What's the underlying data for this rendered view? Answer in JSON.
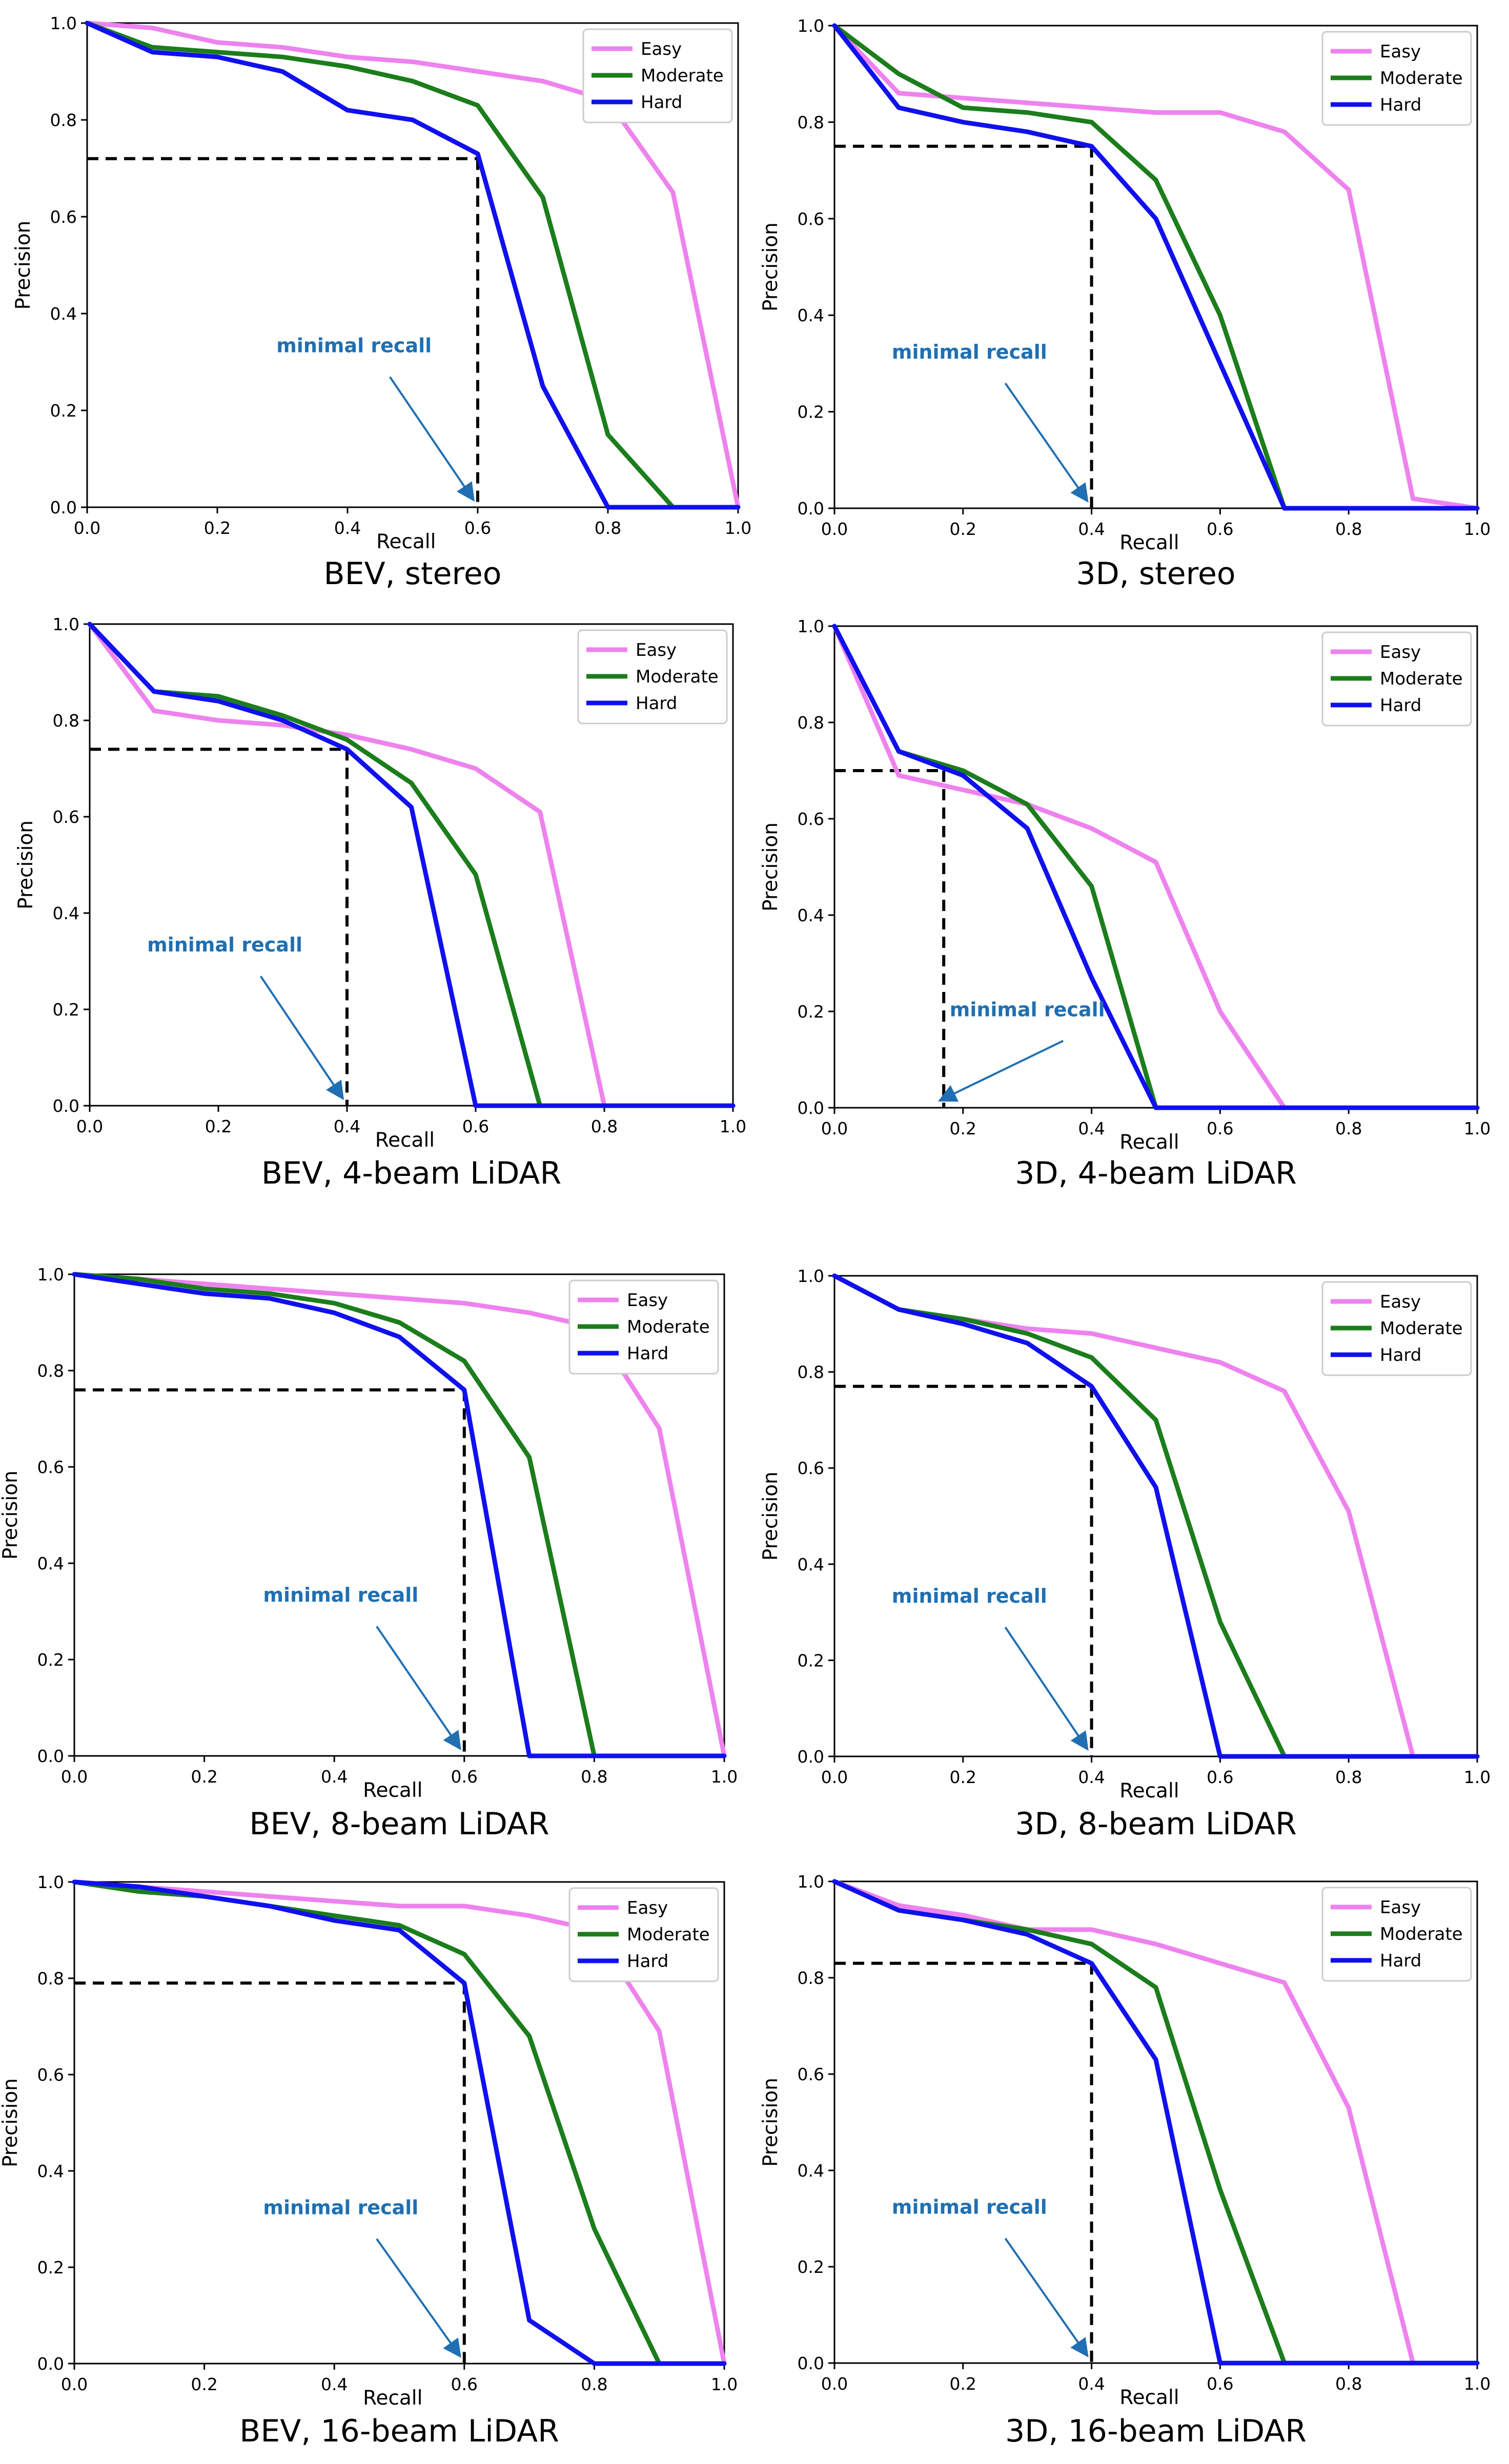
{
  "colors": {
    "easy": "#ee82ee",
    "moderate": "#1b7d1b",
    "hard": "#1010ee",
    "annotation": "#1f6fb2",
    "dashed": "#000000"
  },
  "chart_data": [
    {
      "type": "line",
      "caption": "BEV, stereo",
      "xlabel": "Recall",
      "ylabel": "Precision",
      "xlim": [
        0,
        1
      ],
      "ylim": [
        0,
        1
      ],
      "xticks": [
        "0.0",
        "0.2",
        "0.4",
        "0.6",
        "0.8",
        "1.0"
      ],
      "yticks": [
        "0.0",
        "0.2",
        "0.4",
        "0.6",
        "0.8",
        "1.0"
      ],
      "legend": {
        "position": "top-right",
        "labels": [
          "Easy",
          "Moderate",
          "Hard"
        ]
      },
      "annotation": {
        "text": "minimal recall",
        "recall": 0.6,
        "precision": 0.72,
        "label_at": [
          0.41,
          0.32
        ]
      },
      "series": [
        {
          "name": "Easy",
          "x": [
            0,
            0.1,
            0.2,
            0.3,
            0.4,
            0.5,
            0.6,
            0.7,
            0.8,
            0.9,
            1.0
          ],
          "y": [
            1.0,
            0.99,
            0.96,
            0.95,
            0.93,
            0.92,
            0.9,
            0.88,
            0.84,
            0.65,
            0.0
          ]
        },
        {
          "name": "Moderate",
          "x": [
            0,
            0.1,
            0.2,
            0.3,
            0.4,
            0.5,
            0.6,
            0.7,
            0.8,
            0.9,
            1.0
          ],
          "y": [
            1.0,
            0.95,
            0.94,
            0.93,
            0.91,
            0.88,
            0.83,
            0.64,
            0.15,
            0.0,
            0.0
          ]
        },
        {
          "name": "Hard",
          "x": [
            0,
            0.1,
            0.2,
            0.3,
            0.4,
            0.5,
            0.6,
            0.7,
            0.8,
            0.9,
            1.0
          ],
          "y": [
            1.0,
            0.94,
            0.93,
            0.9,
            0.82,
            0.8,
            0.73,
            0.25,
            0.0,
            0.0,
            0.0
          ]
        }
      ]
    },
    {
      "type": "line",
      "caption": "3D, stereo",
      "xlabel": "Recall",
      "ylabel": "Precision",
      "xlim": [
        0,
        1
      ],
      "ylim": [
        0,
        1
      ],
      "xticks": [
        "0.0",
        "0.2",
        "0.4",
        "0.6",
        "0.8",
        "1.0"
      ],
      "yticks": [
        "0.0",
        "0.2",
        "0.4",
        "0.6",
        "0.8",
        "1.0"
      ],
      "legend": {
        "position": "top-right",
        "labels": [
          "Easy",
          "Moderate",
          "Hard"
        ]
      },
      "annotation": {
        "text": "minimal recall",
        "recall": 0.4,
        "precision": 0.75,
        "label_at": [
          0.21,
          0.31
        ]
      },
      "series": [
        {
          "name": "Easy",
          "x": [
            0,
            0.1,
            0.2,
            0.3,
            0.4,
            0.5,
            0.6,
            0.7,
            0.8,
            0.9,
            1.0
          ],
          "y": [
            1.0,
            0.86,
            0.85,
            0.84,
            0.83,
            0.82,
            0.82,
            0.78,
            0.66,
            0.02,
            0.0
          ]
        },
        {
          "name": "Moderate",
          "x": [
            0,
            0.1,
            0.2,
            0.3,
            0.4,
            0.5,
            0.6,
            0.7,
            0.8,
            0.9,
            1.0
          ],
          "y": [
            1.0,
            0.9,
            0.83,
            0.82,
            0.8,
            0.68,
            0.4,
            0.0,
            0.0,
            0.0,
            0.0
          ]
        },
        {
          "name": "Hard",
          "x": [
            0,
            0.1,
            0.2,
            0.3,
            0.4,
            0.5,
            0.6,
            0.7,
            0.8,
            0.9,
            1.0
          ],
          "y": [
            1.0,
            0.83,
            0.8,
            0.78,
            0.75,
            0.6,
            0.3,
            0.0,
            0.0,
            0.0,
            0.0
          ]
        }
      ]
    },
    {
      "type": "line",
      "caption": "BEV, 4-beam LiDAR",
      "xlabel": "Recall",
      "ylabel": "Precision",
      "xlim": [
        0,
        1
      ],
      "ylim": [
        0,
        1
      ],
      "xticks": [
        "0.0",
        "0.2",
        "0.4",
        "0.6",
        "0.8",
        "1.0"
      ],
      "yticks": [
        "0.0",
        "0.2",
        "0.4",
        "0.6",
        "0.8",
        "1.0"
      ],
      "legend": {
        "position": "top-right",
        "labels": [
          "Easy",
          "Moderate",
          "Hard"
        ]
      },
      "annotation": {
        "text": "minimal recall",
        "recall": 0.4,
        "precision": 0.74,
        "label_at": [
          0.21,
          0.32
        ]
      },
      "series": [
        {
          "name": "Easy",
          "x": [
            0,
            0.1,
            0.2,
            0.3,
            0.4,
            0.5,
            0.6,
            0.7,
            0.8,
            0.9,
            1.0
          ],
          "y": [
            1.0,
            0.82,
            0.8,
            0.79,
            0.77,
            0.74,
            0.7,
            0.61,
            0.0,
            0.0,
            0.0
          ]
        },
        {
          "name": "Moderate",
          "x": [
            0,
            0.1,
            0.2,
            0.3,
            0.4,
            0.5,
            0.6,
            0.7,
            0.8,
            0.9,
            1.0
          ],
          "y": [
            1.0,
            0.86,
            0.85,
            0.81,
            0.76,
            0.67,
            0.48,
            0.0,
            0.0,
            0.0,
            0.0
          ]
        },
        {
          "name": "Hard",
          "x": [
            0,
            0.1,
            0.2,
            0.3,
            0.4,
            0.5,
            0.6,
            0.7,
            0.8,
            0.9,
            1.0
          ],
          "y": [
            1.0,
            0.86,
            0.84,
            0.8,
            0.74,
            0.62,
            0.0,
            0.0,
            0.0,
            0.0,
            0.0
          ]
        }
      ]
    },
    {
      "type": "line",
      "caption": "3D, 4-beam LiDAR",
      "xlabel": "Recall",
      "ylabel": "Precision",
      "xlim": [
        0,
        1
      ],
      "ylim": [
        0,
        1
      ],
      "xticks": [
        "0.0",
        "0.2",
        "0.4",
        "0.6",
        "0.8",
        "1.0"
      ],
      "yticks": [
        "0.0",
        "0.2",
        "0.4",
        "0.6",
        "0.8",
        "1.0"
      ],
      "legend": {
        "position": "top-right",
        "labels": [
          "Easy",
          "Moderate",
          "Hard"
        ]
      },
      "annotation": {
        "text": "minimal recall",
        "recall": 0.17,
        "precision": 0.7,
        "label_at": [
          0.3,
          0.19
        ]
      },
      "series": [
        {
          "name": "Easy",
          "x": [
            0,
            0.1,
            0.2,
            0.3,
            0.4,
            0.5,
            0.6,
            0.7,
            0.8,
            0.9,
            1.0
          ],
          "y": [
            1.0,
            0.69,
            0.66,
            0.63,
            0.58,
            0.51,
            0.2,
            0.0,
            0.0,
            0.0,
            0.0
          ]
        },
        {
          "name": "Moderate",
          "x": [
            0,
            0.1,
            0.2,
            0.3,
            0.4,
            0.5,
            0.6,
            0.7,
            0.8,
            0.9,
            1.0
          ],
          "y": [
            1.0,
            0.74,
            0.7,
            0.63,
            0.46,
            0.0,
            0.0,
            0.0,
            0.0,
            0.0,
            0.0
          ]
        },
        {
          "name": "Hard",
          "x": [
            0,
            0.1,
            0.2,
            0.3,
            0.4,
            0.5,
            0.6,
            0.7,
            0.8,
            0.9,
            1.0
          ],
          "y": [
            1.0,
            0.74,
            0.69,
            0.58,
            0.27,
            0.0,
            0.0,
            0.0,
            0.0,
            0.0,
            0.0
          ]
        }
      ]
    },
    {
      "type": "line",
      "caption": "BEV, 8-beam LiDAR",
      "xlabel": "Recall",
      "ylabel": "Precision",
      "xlim": [
        0,
        1
      ],
      "ylim": [
        0,
        1
      ],
      "xticks": [
        "0.0",
        "0.2",
        "0.4",
        "0.6",
        "0.8",
        "1.0"
      ],
      "yticks": [
        "0.0",
        "0.2",
        "0.4",
        "0.6",
        "0.8",
        "1.0"
      ],
      "legend": {
        "position": "top-right",
        "labels": [
          "Easy",
          "Moderate",
          "Hard"
        ]
      },
      "annotation": {
        "text": "minimal recall",
        "recall": 0.6,
        "precision": 0.76,
        "label_at": [
          0.41,
          0.32
        ]
      },
      "series": [
        {
          "name": "Easy",
          "x": [
            0,
            0.1,
            0.2,
            0.3,
            0.4,
            0.5,
            0.6,
            0.7,
            0.8,
            0.9,
            1.0
          ],
          "y": [
            1.0,
            0.99,
            0.98,
            0.97,
            0.96,
            0.95,
            0.94,
            0.92,
            0.89,
            0.68,
            0.0
          ]
        },
        {
          "name": "Moderate",
          "x": [
            0,
            0.1,
            0.2,
            0.3,
            0.4,
            0.5,
            0.6,
            0.7,
            0.8,
            0.9,
            1.0
          ],
          "y": [
            1.0,
            0.99,
            0.97,
            0.96,
            0.94,
            0.9,
            0.82,
            0.62,
            0.0,
            0.0,
            0.0
          ]
        },
        {
          "name": "Hard",
          "x": [
            0,
            0.1,
            0.2,
            0.3,
            0.4,
            0.5,
            0.6,
            0.7,
            0.8,
            0.9,
            1.0
          ],
          "y": [
            1.0,
            0.98,
            0.96,
            0.95,
            0.92,
            0.87,
            0.76,
            0.0,
            0.0,
            0.0,
            0.0
          ]
        }
      ]
    },
    {
      "type": "line",
      "caption": "3D, 8-beam LiDAR",
      "xlabel": "Recall",
      "ylabel": "Precision",
      "xlim": [
        0,
        1
      ],
      "ylim": [
        0,
        1
      ],
      "xticks": [
        "0.0",
        "0.2",
        "0.4",
        "0.6",
        "0.8",
        "1.0"
      ],
      "yticks": [
        "0.0",
        "0.2",
        "0.4",
        "0.6",
        "0.8",
        "1.0"
      ],
      "legend": {
        "position": "top-right",
        "labels": [
          "Easy",
          "Moderate",
          "Hard"
        ]
      },
      "annotation": {
        "text": "minimal recall",
        "recall": 0.4,
        "precision": 0.77,
        "label_at": [
          0.21,
          0.32
        ]
      },
      "series": [
        {
          "name": "Easy",
          "x": [
            0,
            0.1,
            0.2,
            0.3,
            0.4,
            0.5,
            0.6,
            0.7,
            0.8,
            0.9,
            1.0
          ],
          "y": [
            1.0,
            0.93,
            0.91,
            0.89,
            0.88,
            0.85,
            0.82,
            0.76,
            0.51,
            0.0,
            0.0
          ]
        },
        {
          "name": "Moderate",
          "x": [
            0,
            0.1,
            0.2,
            0.3,
            0.4,
            0.5,
            0.6,
            0.7,
            0.8,
            0.9,
            1.0
          ],
          "y": [
            1.0,
            0.93,
            0.91,
            0.88,
            0.83,
            0.7,
            0.28,
            0.0,
            0.0,
            0.0,
            0.0
          ]
        },
        {
          "name": "Hard",
          "x": [
            0,
            0.1,
            0.2,
            0.3,
            0.4,
            0.5,
            0.6,
            0.7,
            0.8,
            0.9,
            1.0
          ],
          "y": [
            1.0,
            0.93,
            0.9,
            0.86,
            0.77,
            0.56,
            0.0,
            0.0,
            0.0,
            0.0,
            0.0
          ]
        }
      ]
    },
    {
      "type": "line",
      "caption": "BEV, 16-beam LiDAR",
      "xlabel": "Recall",
      "ylabel": "Precision",
      "xlim": [
        0,
        1
      ],
      "ylim": [
        0,
        1
      ],
      "xticks": [
        "0.0",
        "0.2",
        "0.4",
        "0.6",
        "0.8",
        "1.0"
      ],
      "yticks": [
        "0.0",
        "0.2",
        "0.4",
        "0.6",
        "0.8",
        "1.0"
      ],
      "legend": {
        "position": "top-right",
        "labels": [
          "Easy",
          "Moderate",
          "Hard"
        ]
      },
      "annotation": {
        "text": "minimal recall",
        "recall": 0.6,
        "precision": 0.79,
        "label_at": [
          0.41,
          0.31
        ]
      },
      "series": [
        {
          "name": "Easy",
          "x": [
            0,
            0.1,
            0.2,
            0.3,
            0.4,
            0.5,
            0.6,
            0.7,
            0.8,
            0.9,
            1.0
          ],
          "y": [
            1.0,
            0.99,
            0.98,
            0.97,
            0.96,
            0.95,
            0.95,
            0.93,
            0.9,
            0.69,
            0.0
          ]
        },
        {
          "name": "Moderate",
          "x": [
            0,
            0.1,
            0.2,
            0.3,
            0.4,
            0.5,
            0.6,
            0.7,
            0.8,
            0.9,
            1.0
          ],
          "y": [
            1.0,
            0.98,
            0.97,
            0.95,
            0.93,
            0.91,
            0.85,
            0.68,
            0.28,
            0.0,
            0.0
          ]
        },
        {
          "name": "Hard",
          "x": [
            0,
            0.1,
            0.2,
            0.3,
            0.4,
            0.5,
            0.6,
            0.7,
            0.8,
            0.9,
            1.0
          ],
          "y": [
            1.0,
            0.99,
            0.97,
            0.95,
            0.92,
            0.9,
            0.79,
            0.09,
            0.0,
            0.0,
            0.0
          ]
        }
      ]
    },
    {
      "type": "line",
      "caption": "3D, 16-beam LiDAR",
      "xlabel": "Recall",
      "ylabel": "Precision",
      "xlim": [
        0,
        1
      ],
      "ylim": [
        0,
        1
      ],
      "xticks": [
        "0.0",
        "0.2",
        "0.4",
        "0.6",
        "0.8",
        "1.0"
      ],
      "yticks": [
        "0.0",
        "0.2",
        "0.4",
        "0.6",
        "0.8",
        "1.0"
      ],
      "legend": {
        "position": "top-right",
        "labels": [
          "Easy",
          "Moderate",
          "Hard"
        ]
      },
      "annotation": {
        "text": "minimal recall",
        "recall": 0.4,
        "precision": 0.83,
        "label_at": [
          0.21,
          0.31
        ]
      },
      "series": [
        {
          "name": "Easy",
          "x": [
            0,
            0.1,
            0.2,
            0.3,
            0.4,
            0.5,
            0.6,
            0.7,
            0.8,
            0.9,
            1.0
          ],
          "y": [
            1.0,
            0.95,
            0.93,
            0.9,
            0.9,
            0.87,
            0.83,
            0.79,
            0.53,
            0.0,
            0.0
          ]
        },
        {
          "name": "Moderate",
          "x": [
            0,
            0.1,
            0.2,
            0.3,
            0.4,
            0.5,
            0.6,
            0.7,
            0.8,
            0.9,
            1.0
          ],
          "y": [
            1.0,
            0.94,
            0.92,
            0.9,
            0.87,
            0.78,
            0.36,
            0.0,
            0.0,
            0.0,
            0.0
          ]
        },
        {
          "name": "Hard",
          "x": [
            0,
            0.1,
            0.2,
            0.3,
            0.4,
            0.5,
            0.6,
            0.7,
            0.8,
            0.9,
            1.0
          ],
          "y": [
            1.0,
            0.94,
            0.92,
            0.89,
            0.83,
            0.63,
            0.0,
            0.0,
            0.0,
            0.0,
            0.0
          ]
        }
      ]
    }
  ]
}
